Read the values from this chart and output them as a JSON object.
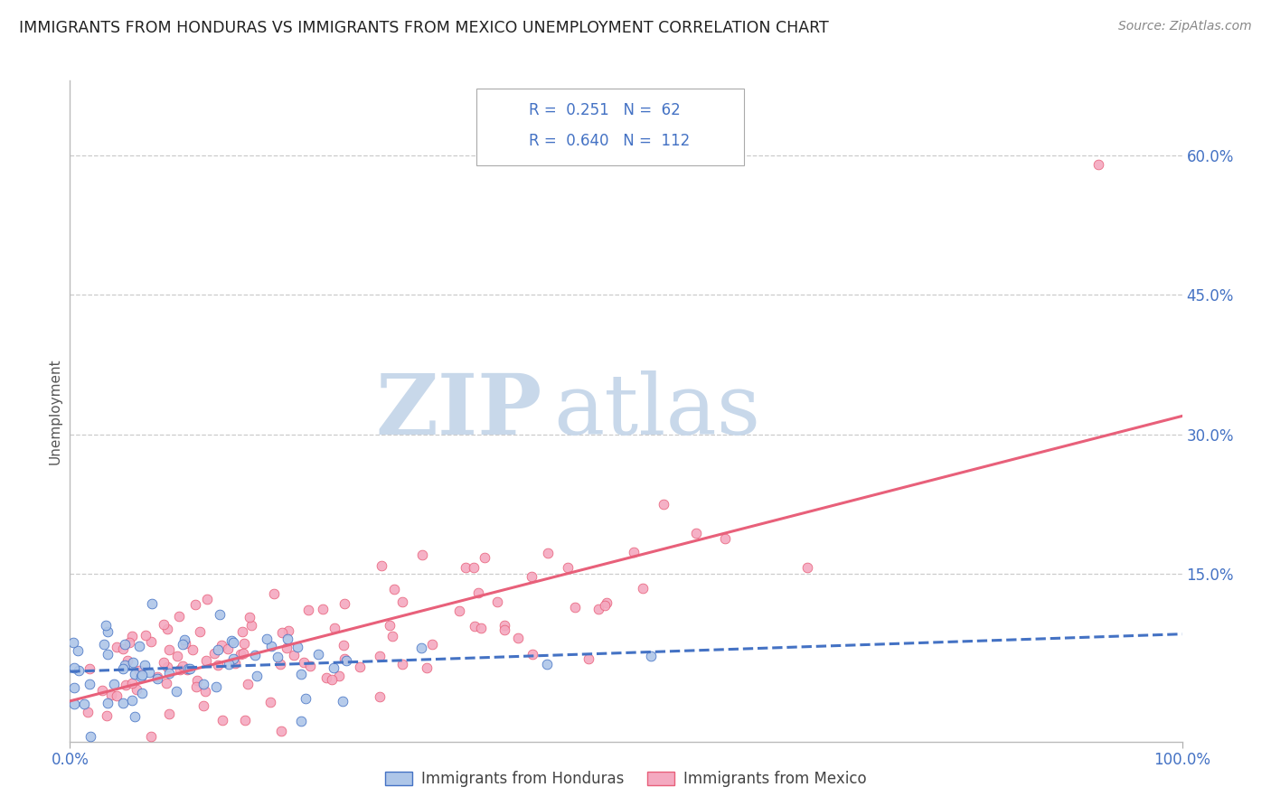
{
  "title": "IMMIGRANTS FROM HONDURAS VS IMMIGRANTS FROM MEXICO UNEMPLOYMENT CORRELATION CHART",
  "source": "Source: ZipAtlas.com",
  "ylabel": "Unemployment",
  "xlim": [
    0.0,
    1.0
  ],
  "ylim": [
    -0.03,
    0.68
  ],
  "yticks_right": [
    0.15,
    0.3,
    0.45,
    0.6
  ],
  "yticklabels_right": [
    "15.0%",
    "30.0%",
    "45.0%",
    "60.0%"
  ],
  "honduras_fill": "#aec6e8",
  "mexico_fill": "#f4a9c0",
  "honduras_edge": "#4472c4",
  "mexico_edge": "#e8607a",
  "honduras_line": "#4472c4",
  "mexico_line": "#e8607a",
  "label_color": "#4472c4",
  "watermark_color": "#c8d8ea",
  "background": "#ffffff",
  "grid_color": "#cccccc",
  "title_color": "#222222",
  "tick_color": "#4472c4",
  "honduras_R": 0.251,
  "honduras_N": 62,
  "mexico_R": 0.64,
  "mexico_N": 112
}
